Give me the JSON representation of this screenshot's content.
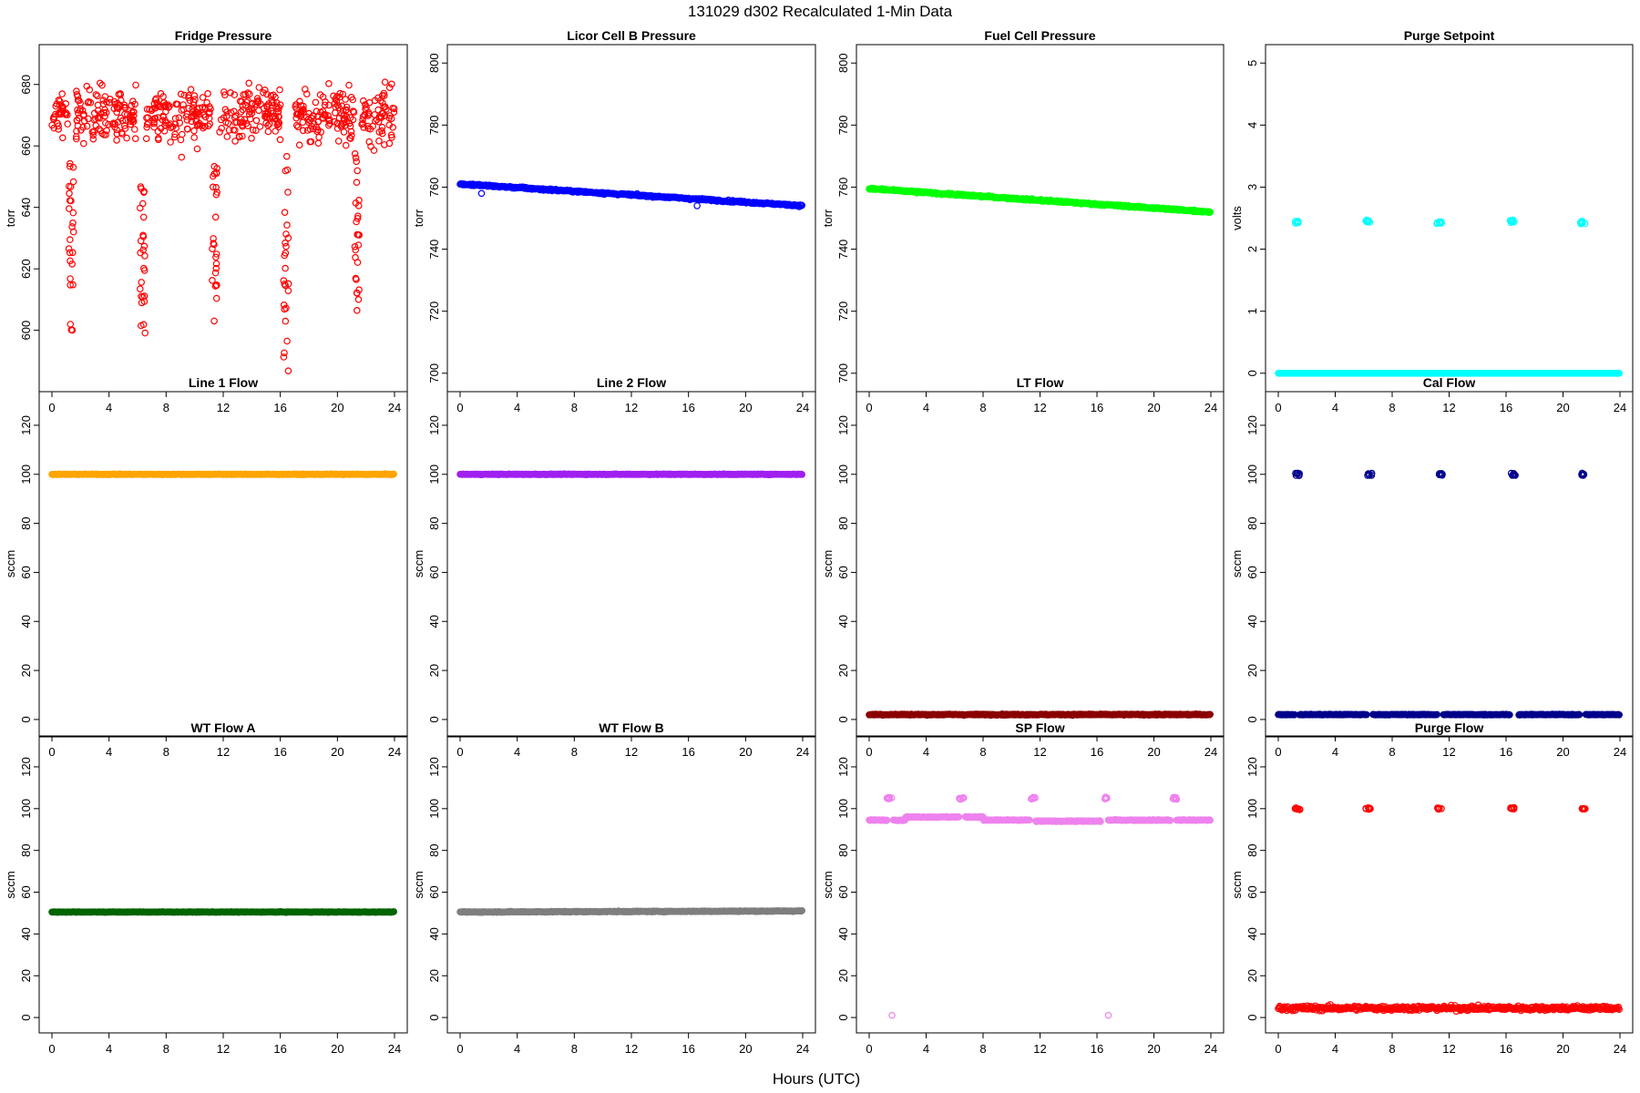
{
  "figure": {
    "title": "131029   d302   Recalculated 1-Min Data",
    "xlabel": "Hours (UTC)"
  },
  "chart_data": [
    {
      "type": "scatter",
      "title": "Fridge Pressure",
      "ylabel": "torr",
      "color": "#ff0000",
      "ylim": [
        583,
        690
      ],
      "yticks": [
        600,
        620,
        640,
        660,
        680
      ],
      "xlim": [
        0,
        24
      ],
      "xticks": [
        0,
        4,
        8,
        12,
        16,
        20,
        24
      ],
      "series": [
        {
          "kind": "noise",
          "center": 670,
          "spread": 7,
          "segments": [
            [
              0,
              1.1
            ],
            [
              1.7,
              6.0
            ],
            [
              6.6,
              11.2
            ],
            [
              11.7,
              16.0
            ],
            [
              16.9,
              21.2
            ],
            [
              21.7,
              24
            ]
          ]
        }
      ],
      "dips": [
        {
          "center": 1.35,
          "min": 600
        },
        {
          "center": 6.35,
          "min": 596
        },
        {
          "center": 11.4,
          "min": 602
        },
        {
          "center": 16.4,
          "min": 586
        },
        {
          "center": 21.4,
          "min": 604
        }
      ]
    },
    {
      "type": "scatter",
      "title": "Licor Cell B Pressure",
      "ylabel": "torr",
      "color": "#0000ff",
      "ylim": [
        697,
        803
      ],
      "yticks": [
        700,
        720,
        740,
        760,
        780,
        800
      ],
      "xlim": [
        0,
        24
      ],
      "xticks": [
        0,
        4,
        8,
        12,
        16,
        20,
        24
      ],
      "series": [
        {
          "kind": "trend",
          "from": 761,
          "to": 754,
          "noise": 0.4
        }
      ],
      "outliers": [
        {
          "x": 1.5,
          "y": 758
        },
        {
          "x": 16.6,
          "y": 754
        }
      ]
    },
    {
      "type": "scatter",
      "title": "Fuel Cell Pressure",
      "ylabel": "torr",
      "color": "#00ff00",
      "ylim": [
        697,
        803
      ],
      "yticks": [
        700,
        720,
        740,
        760,
        780,
        800
      ],
      "xlim": [
        0,
        24
      ],
      "xticks": [
        0,
        4,
        8,
        12,
        16,
        20,
        24
      ],
      "series": [
        {
          "kind": "trend",
          "from": 759.5,
          "to": 752,
          "noise": 0.4
        }
      ]
    },
    {
      "type": "scatter",
      "title": "Purge Setpoint",
      "ylabel": "volts",
      "color": "#00ffff",
      "ylim": [
        -0.15,
        5.15
      ],
      "yticks": [
        0,
        1,
        2,
        3,
        4,
        5
      ],
      "xlim": [
        0,
        24
      ],
      "xticks": [
        0,
        4,
        8,
        12,
        16,
        20,
        24
      ],
      "series": [
        {
          "kind": "flat",
          "value": 0,
          "noise": 0
        }
      ],
      "clusters": [
        {
          "x": 1.3,
          "y": 2.43
        },
        {
          "x": 6.3,
          "y": 2.45
        },
        {
          "x": 11.3,
          "y": 2.43
        },
        {
          "x": 16.4,
          "y": 2.45
        },
        {
          "x": 21.4,
          "y": 2.43
        }
      ]
    },
    {
      "type": "scatter",
      "title": "Line 1 Flow",
      "ylabel": "sccm",
      "color": "#ffa500",
      "ylim": [
        -3,
        130
      ],
      "yticks": [
        0,
        20,
        40,
        60,
        80,
        100,
        120
      ],
      "xlim": [
        0,
        24
      ],
      "xticks": [
        0,
        4,
        8,
        12,
        16,
        20,
        24
      ],
      "series": [
        {
          "kind": "flat",
          "value": 100,
          "noise": 0.2
        }
      ]
    },
    {
      "type": "scatter",
      "title": "Line 2 Flow",
      "ylabel": "sccm",
      "color": "#a020f0",
      "ylim": [
        -3,
        130
      ],
      "yticks": [
        0,
        20,
        40,
        60,
        80,
        100,
        120
      ],
      "xlim": [
        0,
        24
      ],
      "xticks": [
        0,
        4,
        8,
        12,
        16,
        20,
        24
      ],
      "series": [
        {
          "kind": "flat",
          "value": 100,
          "noise": 0.2
        }
      ]
    },
    {
      "type": "scatter",
      "title": "LT Flow",
      "ylabel": "sccm",
      "color": "#8b0000",
      "ylim": [
        -3,
        130
      ],
      "yticks": [
        0,
        20,
        40,
        60,
        80,
        100,
        120
      ],
      "xlim": [
        0,
        24
      ],
      "xticks": [
        0,
        4,
        8,
        12,
        16,
        20,
        24
      ],
      "series": [
        {
          "kind": "flat",
          "value": 2,
          "noise": 0.3
        }
      ]
    },
    {
      "type": "scatter",
      "title": "Cal Flow",
      "ylabel": "sccm",
      "color": "#00008b",
      "ylim": [
        -3,
        130
      ],
      "yticks": [
        0,
        20,
        40,
        60,
        80,
        100,
        120
      ],
      "xlim": [
        0,
        24
      ],
      "xticks": [
        0,
        4,
        8,
        12,
        16,
        20,
        24
      ],
      "series": [
        {
          "kind": "flat",
          "value": 2,
          "noise": 0.2,
          "gaps": [
            [
              1.2,
              1.5
            ],
            [
              6.2,
              6.6
            ],
            [
              11.2,
              11.6
            ],
            [
              16.3,
              16.9
            ],
            [
              21.2,
              21.6
            ]
          ]
        }
      ],
      "clusters": [
        {
          "x": 1.35,
          "y": 100
        },
        {
          "x": 6.4,
          "y": 100
        },
        {
          "x": 11.4,
          "y": 100
        },
        {
          "x": 16.5,
          "y": 100
        },
        {
          "x": 21.4,
          "y": 100
        }
      ]
    },
    {
      "type": "scatter",
      "title": "WT Flow A",
      "ylabel": "sccm",
      "color": "#006400",
      "ylim": [
        -3,
        130
      ],
      "yticks": [
        0,
        20,
        40,
        60,
        80,
        100,
        120
      ],
      "xlim": [
        0,
        24
      ],
      "xticks": [
        0,
        4,
        8,
        12,
        16,
        20,
        24
      ],
      "series": [
        {
          "kind": "flat",
          "value": 50.5,
          "noise": 0.2
        }
      ]
    },
    {
      "type": "scatter",
      "title": "WT Flow B",
      "ylabel": "sccm",
      "color": "#7f7f7f",
      "ylim": [
        -3,
        130
      ],
      "yticks": [
        0,
        20,
        40,
        60,
        80,
        100,
        120
      ],
      "xlim": [
        0,
        24
      ],
      "xticks": [
        0,
        4,
        8,
        12,
        16,
        20,
        24
      ],
      "series": [
        {
          "kind": "trend",
          "from": 50.5,
          "to": 51,
          "noise": 0.3
        }
      ]
    },
    {
      "type": "scatter",
      "title": "SP Flow",
      "ylabel": "sccm",
      "color": "#ee82ee",
      "ylim": [
        -3,
        130
      ],
      "yticks": [
        0,
        20,
        40,
        60,
        80,
        100,
        120
      ],
      "xlim": [
        0,
        24
      ],
      "xticks": [
        0,
        4,
        8,
        12,
        16,
        20,
        24
      ],
      "series": [
        {
          "kind": "steps",
          "noise": 0.3,
          "steps": [
            [
              0,
              1.3,
              94.5
            ],
            [
              1.7,
              2.5,
              94.5
            ],
            [
              2.5,
              6.3,
              96
            ],
            [
              6.7,
              8.0,
              96
            ],
            [
              8.0,
              11.3,
              94.5
            ],
            [
              11.7,
              16.3,
              94
            ],
            [
              16.8,
              21.2,
              94.5
            ],
            [
              21.6,
              24,
              94.5
            ]
          ]
        }
      ],
      "clusters": [
        {
          "x": 1.4,
          "y": 105
        },
        {
          "x": 6.5,
          "y": 105
        },
        {
          "x": 11.5,
          "y": 105
        },
        {
          "x": 16.6,
          "y": 105
        },
        {
          "x": 21.5,
          "y": 105
        }
      ],
      "outliers": [
        {
          "x": 1.6,
          "y": 1
        },
        {
          "x": 16.8,
          "y": 1
        }
      ]
    },
    {
      "type": "scatter",
      "title": "Purge Flow",
      "ylabel": "sccm",
      "color": "#ff0000",
      "ylim": [
        -3,
        130
      ],
      "yticks": [
        0,
        20,
        40,
        60,
        80,
        100,
        120
      ],
      "xlim": [
        0,
        24
      ],
      "xticks": [
        0,
        4,
        8,
        12,
        16,
        20,
        24
      ],
      "series": [
        {
          "kind": "flat",
          "value": 4.5,
          "noise": 1.6
        }
      ],
      "clusters": [
        {
          "x": 1.35,
          "y": 100
        },
        {
          "x": 6.3,
          "y": 100
        },
        {
          "x": 11.3,
          "y": 100
        },
        {
          "x": 16.4,
          "y": 100
        },
        {
          "x": 21.4,
          "y": 100
        }
      ]
    }
  ]
}
